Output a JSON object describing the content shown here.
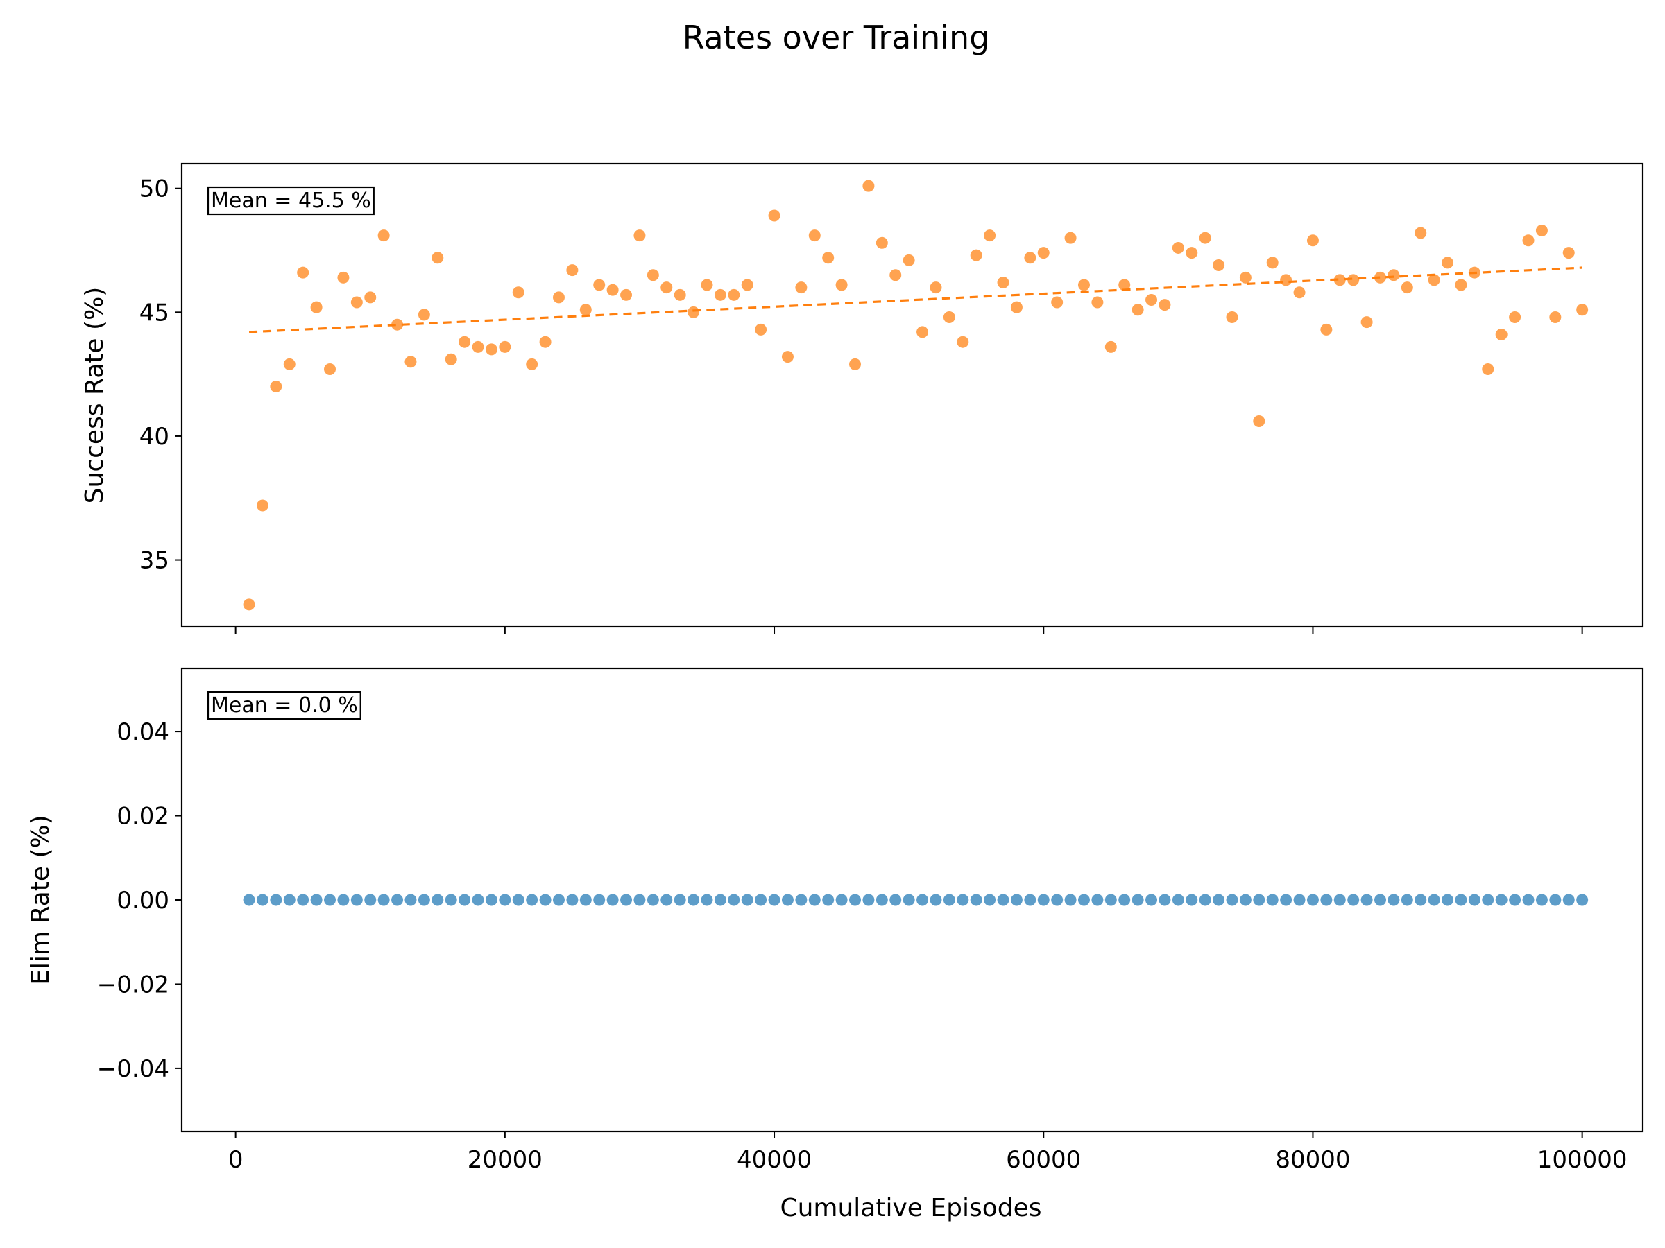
{
  "figure": {
    "title": "Rates over Training",
    "xlabel": "Cumulative Episodes"
  },
  "chart_data": [
    {
      "type": "scatter",
      "ylabel": "Success Rate (%)",
      "annotation": "Mean = 45.5 %",
      "xlim": [
        -4000,
        104500
      ],
      "ylim": [
        32.3,
        51.0
      ],
      "xticks": [
        0,
        20000,
        40000,
        60000,
        80000,
        100000
      ],
      "yticks": [
        35,
        40,
        45,
        50
      ],
      "show_xtick_labels": false,
      "point_color": "#ff7f0e",
      "trend": {
        "style": "dashed",
        "color": "#ff7f0e",
        "x": [
          1000,
          100000
        ],
        "y": [
          44.2,
          46.8
        ]
      },
      "x": [
        1000,
        2000,
        3000,
        4000,
        5000,
        6000,
        7000,
        8000,
        9000,
        10000,
        11000,
        12000,
        13000,
        14000,
        15000,
        16000,
        17000,
        18000,
        19000,
        20000,
        21000,
        22000,
        23000,
        24000,
        25000,
        26000,
        27000,
        28000,
        29000,
        30000,
        31000,
        32000,
        33000,
        34000,
        35000,
        36000,
        37000,
        38000,
        39000,
        40000,
        41000,
        42000,
        43000,
        44000,
        45000,
        46000,
        47000,
        48000,
        49000,
        50000,
        51000,
        52000,
        53000,
        54000,
        55000,
        56000,
        57000,
        58000,
        59000,
        60000,
        61000,
        62000,
        63000,
        64000,
        65000,
        66000,
        67000,
        68000,
        69000,
        70000,
        71000,
        72000,
        73000,
        74000,
        75000,
        76000,
        77000,
        78000,
        79000,
        80000,
        81000,
        82000,
        83000,
        84000,
        85000,
        86000,
        87000,
        88000,
        89000,
        90000,
        91000,
        92000,
        93000,
        94000,
        95000,
        96000,
        97000,
        98000,
        99000,
        100000
      ],
      "y": [
        33.2,
        37.2,
        42.0,
        42.9,
        46.6,
        45.2,
        42.7,
        46.4,
        45.4,
        45.6,
        48.1,
        44.5,
        43.0,
        44.9,
        47.2,
        43.1,
        43.8,
        43.6,
        43.5,
        43.6,
        45.8,
        42.9,
        43.8,
        45.6,
        46.7,
        45.1,
        46.1,
        45.9,
        45.7,
        48.1,
        46.5,
        46.0,
        45.7,
        45.0,
        46.1,
        45.7,
        45.7,
        46.1,
        44.3,
        48.9,
        43.2,
        46.0,
        48.1,
        47.2,
        46.1,
        42.9,
        50.1,
        47.8,
        46.5,
        47.1,
        44.2,
        46.0,
        44.8,
        43.8,
        47.3,
        48.1,
        46.2,
        45.2,
        47.2,
        47.4,
        45.4,
        48.0,
        46.1,
        45.4,
        43.6,
        46.1,
        45.1,
        45.5,
        45.3,
        47.6,
        47.4,
        48.0,
        46.9,
        44.8,
        46.4,
        40.6,
        47.0,
        46.3,
        45.8,
        47.9,
        44.3,
        46.3,
        46.3,
        44.6,
        46.4,
        46.5,
        46.0,
        48.2,
        46.3,
        47.0,
        46.1,
        46.6,
        42.7,
        44.1,
        44.8,
        47.9,
        48.3,
        44.8,
        47.4,
        45.1
      ]
    },
    {
      "type": "scatter",
      "ylabel": "Elim Rate (%)",
      "annotation": "Mean = 0.0 %",
      "xlim": [
        -4000,
        104500
      ],
      "ylim": [
        -0.055,
        0.055
      ],
      "xticks": [
        0,
        20000,
        40000,
        60000,
        80000,
        100000
      ],
      "xtick_labels": [
        "0",
        "20000",
        "40000",
        "60000",
        "80000",
        "100000"
      ],
      "yticks": [
        -0.04,
        -0.02,
        0.0,
        0.02,
        0.04
      ],
      "ytick_labels": [
        "−0.04",
        "−0.02",
        "0.00",
        "0.02",
        "0.04"
      ],
      "show_xtick_labels": true,
      "point_color": "#1f77b4",
      "x_range": [
        1000,
        100000,
        1000
      ],
      "constant_y": 0.0
    }
  ]
}
